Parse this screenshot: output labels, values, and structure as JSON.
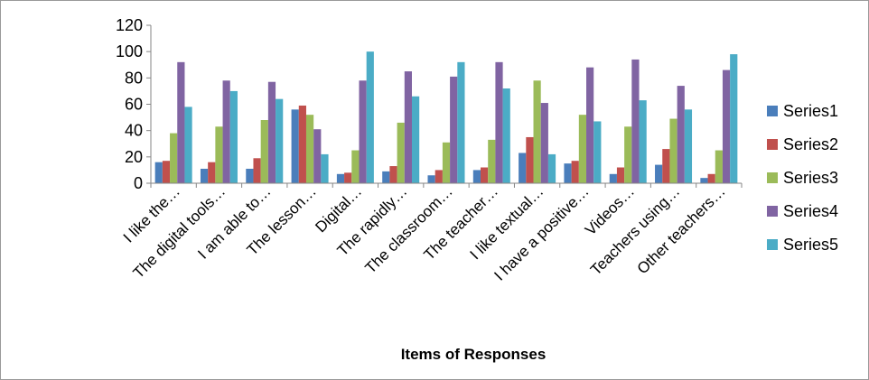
{
  "chart_data": {
    "type": "bar",
    "title": "",
    "xlabel": "Items of Responses",
    "ylabel": "",
    "ylim": [
      0,
      120
    ],
    "yticks": [
      0,
      20,
      40,
      60,
      80,
      100,
      120
    ],
    "grid": false,
    "legend_position": "right",
    "categories": [
      "I like the…",
      "The digital tools…",
      "I am able to…",
      "The lesson…",
      "Digital…",
      "The rapidly…",
      "The classroom…",
      "The teacher…",
      "I like textual…",
      "I have a positive…",
      "Videos…",
      "Teachers using…",
      "Other teachers…"
    ],
    "series": [
      {
        "name": "Series1",
        "color": "#4a7ebb",
        "values": [
          16,
          11,
          11,
          56,
          7,
          9,
          6,
          10,
          23,
          15,
          7,
          14,
          4
        ]
      },
      {
        "name": "Series2",
        "color": "#c0504d",
        "values": [
          17,
          16,
          19,
          59,
          8,
          13,
          10,
          12,
          35,
          17,
          12,
          26,
          7
        ]
      },
      {
        "name": "Series3",
        "color": "#9bbb59",
        "values": [
          38,
          43,
          48,
          52,
          25,
          46,
          31,
          33,
          78,
          52,
          43,
          49,
          25
        ]
      },
      {
        "name": "Series4",
        "color": "#8064a2",
        "values": [
          92,
          78,
          77,
          41,
          78,
          85,
          81,
          92,
          61,
          88,
          94,
          74,
          86
        ]
      },
      {
        "name": "Series5",
        "color": "#4bacc6",
        "values": [
          58,
          70,
          64,
          22,
          100,
          66,
          92,
          72,
          22,
          47,
          63,
          56,
          98
        ]
      }
    ]
  }
}
